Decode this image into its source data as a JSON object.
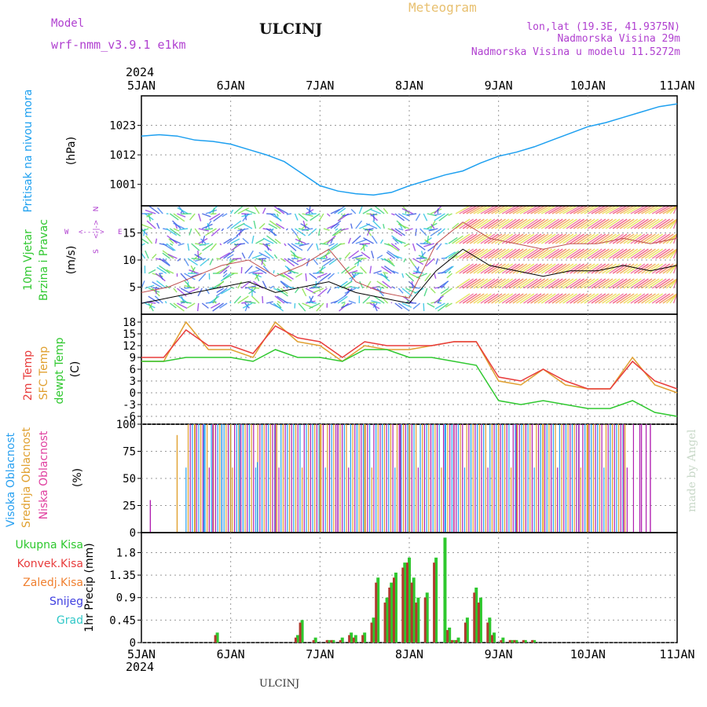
{
  "header": {
    "model_label": "Model",
    "model_value": "wrf-nmm_v3.9.1 e1km",
    "station": "ULCINJ",
    "title": "Meteogram",
    "lonlat": "lon,lat (19.3E, 41.9375N)",
    "elevation": "Nadmorska Visina 29m",
    "model_elevation": "Nadmorska Visina u modelu 11.5272m",
    "footer_station": "ULCINJ",
    "credit": "made by Angel"
  },
  "colors": {
    "pressure": "#1ea0f0",
    "temp2m": "#e83c3c",
    "sfc": "#e0a030",
    "dew": "#30c830",
    "high": "#28a0f0",
    "mid": "#e0a030",
    "low": "#b020b0",
    "precip_total": "#2ec82e",
    "precip_conv": "#b03a2e",
    "title_model": "#b040d0",
    "meteogram": "#e8c070"
  },
  "x_axis": {
    "year": "2024",
    "ticks": [
      "5JAN",
      "6JAN",
      "7JAN",
      "8JAN",
      "9JAN",
      "10JAN",
      "11JAN"
    ]
  },
  "chart_data": [
    {
      "type": "line",
      "panel": "pressure",
      "ylabel": [
        "Pritisak na nivou mora",
        "(hPa)"
      ],
      "yticks": [
        1001,
        1012,
        1023
      ],
      "ylim": [
        993,
        1034
      ],
      "grid": true,
      "series": [
        {
          "x": [
            0,
            0.2,
            0.4,
            0.6,
            0.8,
            1.0,
            1.2,
            1.4,
            1.6,
            1.8,
            2.0,
            2.2,
            2.4,
            2.6,
            2.8,
            3.0,
            3.2,
            3.4,
            3.6,
            3.8,
            4.0,
            4.2,
            4.4,
            4.6,
            4.8,
            5.0,
            5.2,
            5.4,
            5.6,
            5.8,
            6.0
          ],
          "values": [
            1019,
            1019.5,
            1019,
            1017.5,
            1017,
            1016,
            1014,
            1012,
            1009.5,
            1005,
            1000.5,
            998.5,
            997.5,
            997,
            998,
            1000.5,
            1002.5,
            1004.5,
            1006,
            1009,
            1011.5,
            1013,
            1015,
            1017.5,
            1020,
            1022.5,
            1024,
            1026,
            1028,
            1030,
            1031
          ]
        }
      ]
    },
    {
      "type": "line",
      "panel": "wind",
      "ylabel": [
        "10m Vjetar",
        "Brzina i Pravac",
        "(m/s)"
      ],
      "compass": [
        "W",
        "<---->",
        "E",
        "S",
        "<-|->",
        "N"
      ],
      "yticks": [
        5,
        10,
        15
      ],
      "ylim": [
        0,
        20
      ],
      "grid": true,
      "series": [
        {
          "name": "speed",
          "x": [
            0,
            0.3,
            0.6,
            0.9,
            1.2,
            1.5,
            1.8,
            2.1,
            2.4,
            2.7,
            3.0,
            3.3,
            3.6,
            3.9,
            4.2,
            4.5,
            4.8,
            5.1,
            5.4,
            5.7,
            6.0
          ],
          "values": [
            2,
            3,
            4,
            5,
            6,
            4,
            5,
            6,
            4,
            3,
            2,
            8,
            12,
            9,
            8,
            7,
            8,
            8,
            9,
            8,
            9
          ]
        },
        {
          "name": "gust",
          "x": [
            0,
            0.3,
            0.6,
            0.9,
            1.2,
            1.5,
            1.8,
            2.1,
            2.4,
            2.7,
            3.0,
            3.3,
            3.6,
            3.9,
            4.2,
            4.5,
            4.8,
            5.1,
            5.4,
            5.7,
            6.0
          ],
          "values": [
            4,
            5,
            7,
            9,
            10,
            7,
            9,
            12,
            6,
            4,
            3,
            13,
            17,
            14,
            13,
            12,
            13,
            13,
            14,
            13,
            14
          ]
        }
      ]
    },
    {
      "type": "line",
      "panel": "temperature",
      "ylabel": [
        "2m Temp",
        "SFC Temp",
        "dewpt Temp",
        "(C)"
      ],
      "yticks": [
        -6,
        -3,
        0,
        3,
        6,
        9,
        12,
        15,
        18
      ],
      "ylim": [
        -8,
        20
      ],
      "grid": true,
      "series": [
        {
          "name": "2m Temp",
          "x": [
            0,
            0.25,
            0.5,
            0.75,
            1.0,
            1.25,
            1.5,
            1.75,
            2.0,
            2.25,
            2.5,
            2.75,
            3.0,
            3.25,
            3.5,
            3.75,
            4.0,
            4.25,
            4.5,
            4.75,
            5.0,
            5.25,
            5.5,
            5.75,
            6.0
          ],
          "values": [
            9,
            9,
            16,
            12,
            12,
            10,
            17,
            14,
            13,
            9,
            13,
            12,
            12,
            12,
            13,
            13,
            4,
            3,
            6,
            3,
            1,
            1,
            8,
            3,
            1
          ]
        },
        {
          "name": "SFC Temp",
          "x": [
            0,
            0.25,
            0.5,
            0.75,
            1.0,
            1.25,
            1.5,
            1.75,
            2.0,
            2.25,
            2.5,
            2.75,
            3.0,
            3.25,
            3.5,
            3.75,
            4.0,
            4.25,
            4.5,
            4.75,
            5.0,
            5.25,
            5.5,
            5.75,
            6.0
          ],
          "values": [
            8,
            8,
            18,
            11,
            11,
            9,
            18,
            13,
            12,
            8,
            12,
            11,
            11,
            12,
            13,
            13,
            3,
            2,
            6,
            2,
            1,
            1,
            9,
            2,
            0
          ]
        },
        {
          "name": "dewpt Temp",
          "x": [
            0,
            0.25,
            0.5,
            0.75,
            1.0,
            1.25,
            1.5,
            1.75,
            2.0,
            2.25,
            2.5,
            2.75,
            3.0,
            3.25,
            3.5,
            3.75,
            4.0,
            4.25,
            4.5,
            4.75,
            5.0,
            5.25,
            5.5,
            5.75,
            6.0
          ],
          "values": [
            8,
            8,
            9,
            9,
            9,
            8,
            11,
            9,
            9,
            8,
            11,
            11,
            9,
            9,
            8,
            7,
            -2,
            -3,
            -2,
            -3,
            -4,
            -4,
            -2,
            -5,
            -6
          ]
        }
      ]
    },
    {
      "type": "line",
      "panel": "cloud",
      "ylabel": [
        "Visoka Oblacnost",
        "Srednja Oblacnost",
        "Niska Oblacnost",
        "(%)"
      ],
      "yticks": [
        0,
        25,
        50,
        75,
        100
      ],
      "ylim": [
        0,
        100
      ],
      "grid": true,
      "series": [
        {
          "name": "Visoka Oblacnost",
          "x": [
            0.6,
            0.7,
            0.9,
            1.0,
            1.1,
            1.3,
            1.5,
            2.0,
            2.5,
            3.0,
            3.4
          ],
          "values": [
            100,
            100,
            100,
            100,
            100,
            65,
            100,
            100,
            100,
            100,
            100
          ]
        },
        {
          "name": "Srednja Oblacnost",
          "x": [
            0.4,
            0.6,
            1.0,
            1.5,
            2.0,
            2.5,
            3.0,
            3.5,
            4.0,
            4.5,
            5.0,
            5.4
          ],
          "values": [
            90,
            100,
            100,
            100,
            100,
            100,
            100,
            100,
            100,
            100,
            100,
            100
          ]
        },
        {
          "name": "Niska Oblacnost",
          "x": [
            0.1,
            0.8,
            1.5,
            2.2,
            2.9,
            3.5,
            4.2,
            4.9,
            5.4,
            5.6,
            5.7
          ],
          "values": [
            30,
            100,
            100,
            100,
            100,
            100,
            100,
            100,
            100,
            100,
            100
          ]
        }
      ]
    },
    {
      "type": "bar",
      "panel": "precip",
      "ylabel": [
        "1hr Precip (mm)"
      ],
      "legend": [
        "Ukupna Kisa",
        "Konvek.Kisa",
        "Zaledj.Kisa",
        "Snijeg",
        "Grad"
      ],
      "legend_colors": [
        "#2ec82e",
        "#e83c3c",
        "#f08030",
        "#4040e0",
        "#30c8c8"
      ],
      "yticks": [
        0,
        0.45,
        0.9,
        1.35,
        1.8
      ],
      "ylim": [
        0,
        2.2
      ],
      "grid": true,
      "series": [
        {
          "name": "Ukupna Kisa",
          "x": [
            0.85,
            1.75,
            1.8,
            1.95,
            2.1,
            2.15,
            2.25,
            2.35,
            2.4,
            2.5,
            2.6,
            2.65,
            2.75,
            2.8,
            2.85,
            2.95,
            3.0,
            3.05,
            3.1,
            3.2,
            3.3,
            3.4,
            3.45,
            3.5,
            3.55,
            3.65,
            3.75,
            3.8,
            3.9,
            3.95,
            4.05,
            4.15,
            4.2,
            4.3,
            4.4
          ],
          "values": [
            0.2,
            0.15,
            0.45,
            0.1,
            0.05,
            0.05,
            0.1,
            0.2,
            0.15,
            0.2,
            0.5,
            1.3,
            0.9,
            1.2,
            1.4,
            1.6,
            1.7,
            1.3,
            0.9,
            1.0,
            1.7,
            2.1,
            0.3,
            0.05,
            0.1,
            0.5,
            1.1,
            0.9,
            0.5,
            0.2,
            0.1,
            0.05,
            0.05,
            0.05,
            0.05
          ]
        },
        {
          "name": "Konvek.Kisa",
          "x": [
            0.85,
            1.75,
            1.8,
            1.95,
            2.1,
            2.15,
            2.25,
            2.35,
            2.4,
            2.5,
            2.6,
            2.65,
            2.75,
            2.8,
            2.85,
            2.95,
            3.0,
            3.05,
            3.1,
            3.2,
            3.3,
            3.4,
            3.45,
            3.5,
            3.55,
            3.65,
            3.75,
            3.8,
            3.9,
            3.95,
            4.05,
            4.15,
            4.2,
            4.3,
            4.4
          ],
          "values": [
            0.15,
            0.1,
            0.4,
            0.05,
            0.05,
            0.05,
            0.05,
            0.15,
            0.1,
            0.15,
            0.4,
            1.2,
            0.8,
            1.1,
            1.3,
            1.5,
            1.6,
            1.2,
            0.8,
            0.9,
            1.6,
            0,
            0.25,
            0.05,
            0.05,
            0.4,
            1.0,
            0.8,
            0.4,
            0.15,
            0.05,
            0.05,
            0.05,
            0.05,
            0.05
          ]
        }
      ]
    }
  ]
}
